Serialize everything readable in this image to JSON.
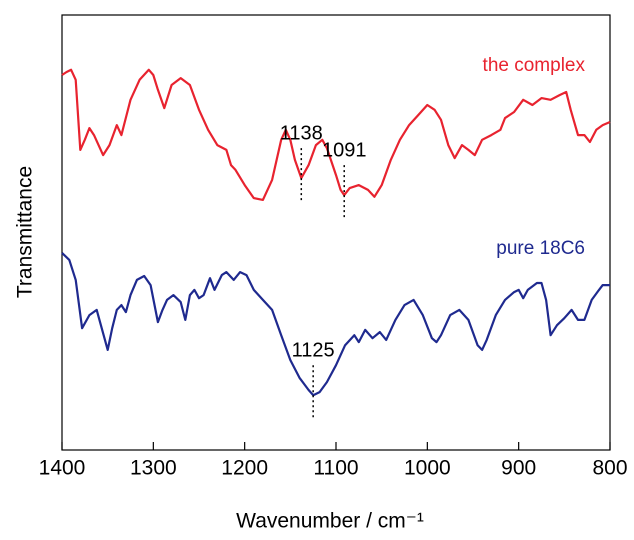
{
  "chart_data": {
    "type": "line",
    "x_label": "Wavenumber / cm⁻¹",
    "y_label": "Transmittance",
    "xlim": [
      1400,
      800
    ],
    "ylim": [
      0,
      100
    ],
    "xticks": [
      1400,
      1300,
      1200,
      1100,
      1000,
      900,
      800
    ],
    "series": [
      {
        "name": "the complex",
        "color": "#e8232f",
        "x": [
          1400,
          1395,
          1390,
          1385,
          1380,
          1375,
          1370,
          1365,
          1355,
          1348,
          1340,
          1335,
          1325,
          1315,
          1305,
          1300,
          1295,
          1288,
          1280,
          1270,
          1260,
          1250,
          1240,
          1230,
          1220,
          1215,
          1210,
          1200,
          1190,
          1180,
          1170,
          1160,
          1155,
          1150,
          1145,
          1138,
          1130,
          1122,
          1115,
          1110,
          1100,
          1095,
          1091,
          1085,
          1075,
          1065,
          1058,
          1050,
          1040,
          1030,
          1020,
          1010,
          1000,
          992,
          985,
          977,
          970,
          962,
          955,
          948,
          940,
          930,
          920,
          915,
          905,
          895,
          885,
          875,
          865,
          855,
          848,
          843,
          835,
          828,
          822,
          815,
          808,
          800
        ],
        "values": [
          86.2,
          86.9,
          87.4,
          85.1,
          69.0,
          71.3,
          74.0,
          72.4,
          67.8,
          70.1,
          74.7,
          72.4,
          80.5,
          85.1,
          87.4,
          86.2,
          82.8,
          78.6,
          83.9,
          85.5,
          83.9,
          78.2,
          73.6,
          70.1,
          69.0,
          65.5,
          64.4,
          60.9,
          57.9,
          57.5,
          62.1,
          71.3,
          73.6,
          71.3,
          66.7,
          62.5,
          65.5,
          70.1,
          71.3,
          69.4,
          63.2,
          59.8,
          58.6,
          60.2,
          60.9,
          59.8,
          58.2,
          60.9,
          66.7,
          71.3,
          74.7,
          77.0,
          79.3,
          78.2,
          75.9,
          70.1,
          67.1,
          70.1,
          69.0,
          67.8,
          71.3,
          72.4,
          73.6,
          76.3,
          77.7,
          80.5,
          79.3,
          80.9,
          80.5,
          81.6,
          82.3,
          78.2,
          72.4,
          72.4,
          70.8,
          73.6,
          74.7,
          75.4
        ],
        "annotations": [
          {
            "text": "1138",
            "x": 1138
          },
          {
            "text": "1091",
            "x": 1091
          }
        ]
      },
      {
        "name": "pure 18C6",
        "color": "#1f2a8f",
        "x": [
          1400,
          1392,
          1385,
          1378,
          1370,
          1362,
          1356,
          1350,
          1345,
          1340,
          1335,
          1330,
          1325,
          1318,
          1310,
          1303,
          1295,
          1290,
          1285,
          1278,
          1270,
          1265,
          1260,
          1255,
          1250,
          1245,
          1238,
          1233,
          1225,
          1220,
          1212,
          1205,
          1198,
          1190,
          1180,
          1170,
          1160,
          1150,
          1140,
          1130,
          1125,
          1118,
          1110,
          1100,
          1090,
          1080,
          1075,
          1068,
          1060,
          1052,
          1045,
          1035,
          1025,
          1015,
          1005,
          995,
          990,
          985,
          975,
          965,
          955,
          945,
          940,
          935,
          925,
          915,
          905,
          900,
          895,
          890,
          880,
          875,
          870,
          865,
          858,
          850,
          842,
          835,
          828,
          820,
          812,
          808,
          800
        ],
        "values": [
          45.3,
          43.7,
          39.1,
          28.0,
          31.0,
          32.2,
          27.6,
          23.0,
          28.0,
          32.2,
          33.3,
          31.7,
          35.6,
          39.1,
          40.0,
          37.9,
          29.4,
          32.2,
          34.5,
          35.6,
          34.0,
          29.9,
          35.6,
          36.8,
          34.9,
          35.6,
          39.5,
          36.8,
          40.2,
          40.9,
          39.1,
          40.9,
          40.2,
          36.8,
          34.5,
          32.2,
          26.4,
          20.7,
          16.6,
          13.8,
          12.6,
          13.3,
          15.6,
          19.5,
          24.1,
          26.4,
          24.8,
          27.6,
          25.7,
          27.1,
          25.3,
          29.9,
          33.3,
          34.5,
          31.0,
          25.7,
          24.8,
          26.4,
          31.0,
          32.2,
          29.9,
          24.1,
          23.0,
          25.3,
          31.0,
          34.5,
          36.3,
          36.8,
          34.9,
          36.8,
          38.4,
          38.4,
          34.5,
          26.4,
          28.7,
          30.3,
          32.2,
          29.9,
          29.9,
          34.5,
          36.8,
          37.9,
          37.9
        ],
        "annotations": [
          {
            "text": "1125",
            "x": 1125
          }
        ]
      }
    ]
  }
}
